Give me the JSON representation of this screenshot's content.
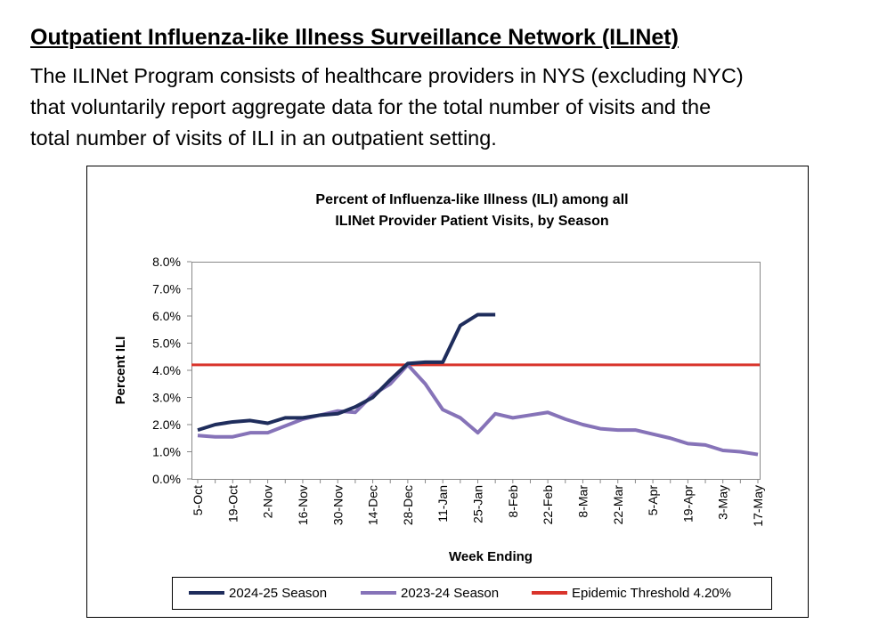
{
  "header": {
    "title": "Outpatient Influenza-like Illness Surveillance Network (ILINet)"
  },
  "paragraph": [
    "The ILINet Program consists of healthcare providers in NYS (excluding NYC)",
    "that voluntarily report aggregate data for the total number of visits and the",
    "total number of visits of ILI in an outpatient setting."
  ],
  "chart_data": {
    "type": "line",
    "title": [
      "Percent of Influenza-like Illness (ILI) among all",
      "ILINet Provider Patient Visits, by Season"
    ],
    "x_label": "Week Ending",
    "y_label": "Percent ILI",
    "categories": [
      "5-Oct",
      null,
      "19-Oct",
      null,
      "2-Nov",
      null,
      "16-Nov",
      null,
      "30-Nov",
      null,
      "14-Dec",
      null,
      "28-Dec",
      null,
      "11-Jan",
      null,
      "25-Jan",
      null,
      "8-Feb",
      null,
      "22-Feb",
      null,
      "8-Mar",
      null,
      "22-Mar",
      null,
      "5-Apr",
      null,
      "19-Apr",
      null,
      "3-May",
      null,
      "17-May"
    ],
    "series": [
      {
        "name": "2024-25 Season",
        "color": "#1f2d5c",
        "values": [
          1.8,
          2.0,
          2.1,
          2.15,
          2.05,
          2.25,
          2.25,
          2.35,
          2.4,
          2.65,
          3.0,
          3.65,
          4.25,
          4.3,
          4.3,
          5.65,
          6.05,
          6.05,
          null,
          null,
          null,
          null,
          null,
          null,
          null,
          null,
          null,
          null,
          null,
          null,
          null,
          null,
          null
        ]
      },
      {
        "name": "2023-24 Season",
        "color": "#8673b8",
        "values": [
          1.6,
          1.55,
          1.55,
          1.7,
          1.7,
          1.95,
          2.2,
          2.35,
          2.5,
          2.45,
          3.1,
          3.5,
          4.2,
          3.5,
          2.55,
          2.25,
          1.7,
          2.4,
          2.25,
          2.35,
          2.45,
          2.2,
          2.0,
          1.85,
          1.8,
          1.8,
          1.65,
          1.5,
          1.3,
          1.25,
          1.05,
          1.0,
          0.9
        ]
      }
    ],
    "threshold": {
      "name": "Epidemic Threshold 4.20%",
      "value": 4.2,
      "color": "#d9342b"
    },
    "ylim": [
      0,
      8
    ],
    "yticks": [
      {
        "value": 0,
        "label": "0.0%"
      },
      {
        "value": 1,
        "label": "1.0%"
      },
      {
        "value": 2,
        "label": "2.0%"
      },
      {
        "value": 3,
        "label": "3.0%"
      },
      {
        "value": 4,
        "label": "4.0%"
      },
      {
        "value": 5,
        "label": "5.0%"
      },
      {
        "value": 6,
        "label": "6.0%"
      },
      {
        "value": 7,
        "label": "7.0%"
      },
      {
        "value": 8,
        "label": "8.0%"
      }
    ],
    "legend": "bottom"
  }
}
